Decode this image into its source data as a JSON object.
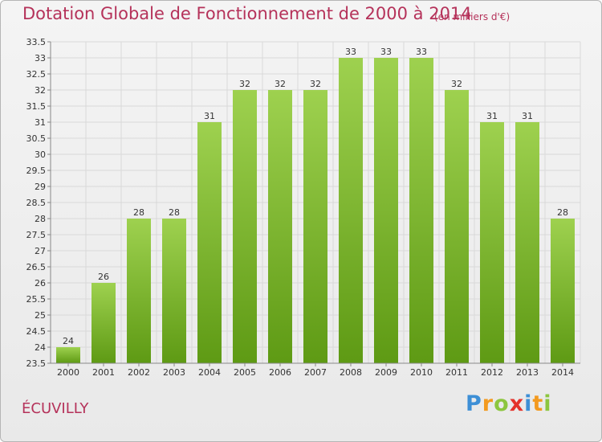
{
  "header": {
    "title": "Dotation Globale de Fonctionnement de 2000 à 2014",
    "subtitle": "(en milliers d'€)"
  },
  "commune": "ÉCUVILLY",
  "brand": {
    "letters": [
      "P",
      "r",
      "o",
      "x",
      "i",
      "t",
      "i"
    ]
  },
  "chart_data": {
    "type": "bar",
    "title": "Dotation Globale de Fonctionnement de 2000 à 2014",
    "subtitle": "(en milliers d'€)",
    "categories": [
      "2000",
      "2001",
      "2002",
      "2003",
      "2004",
      "2005",
      "2006",
      "2007",
      "2008",
      "2009",
      "2010",
      "2011",
      "2012",
      "2013",
      "2014"
    ],
    "values": [
      24,
      26,
      28,
      28,
      31,
      32,
      32,
      32,
      33,
      33,
      33,
      32,
      31,
      31,
      28
    ],
    "data_labels": [
      "24",
      "26",
      "28",
      "28",
      "31",
      "32",
      "32",
      "32",
      "33",
      "33",
      "33",
      "32",
      "31",
      "31",
      "28"
    ],
    "yticks": [
      "23.5",
      "24",
      "24.5",
      "25",
      "25.5",
      "26",
      "26.5",
      "27",
      "27.5",
      "28",
      "28.5",
      "29",
      "29.5",
      "30",
      "30.5",
      "31",
      "31.5",
      "32",
      "32.5",
      "33",
      "33.5"
    ],
    "ylim": [
      23.5,
      33.5
    ],
    "xlabel": "",
    "ylabel": "",
    "grid": true,
    "colors": {
      "bar_top": "#9ed14f",
      "bar_bottom": "#5e9a14",
      "grid": "#d9d9d9",
      "axis": "#888888",
      "accent": "#b5325a"
    }
  }
}
